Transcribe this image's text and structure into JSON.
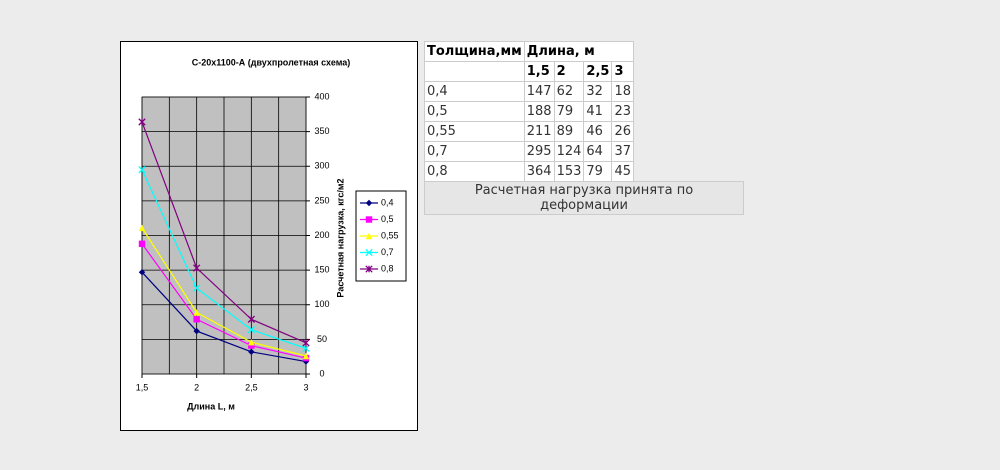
{
  "chart_data": {
    "type": "line",
    "title": "С-20х1100-А (двухпролетная схема)",
    "x_label": "Длина L, м",
    "y_label": "Расчетная нагрузка, кгс/м2",
    "x": [
      1.5,
      2,
      2.5,
      3
    ],
    "xlim": [
      1.5,
      3
    ],
    "xticks": [
      {
        "value": 1.5,
        "label": "1,5"
      },
      2,
      {
        "value": 2.5,
        "label": "2,5"
      },
      3
    ],
    "xgrid": [
      1.5,
      1.75,
      2,
      2.25,
      2.5,
      2.75,
      3
    ],
    "ylim": [
      0,
      400
    ],
    "yticks": [
      0,
      50,
      100,
      150,
      200,
      250,
      300,
      350,
      400
    ],
    "grid": true,
    "plot_background": "#c0c0c0",
    "legend": "right",
    "series": [
      {
        "name": "0,4",
        "color": "#000080",
        "marker": "diamond",
        "values": [
          147,
          62,
          32,
          18
        ]
      },
      {
        "name": "0,5",
        "color": "#ff00ff",
        "marker": "square",
        "values": [
          188,
          79,
          41,
          23
        ]
      },
      {
        "name": "0,55",
        "color": "#ffff00",
        "marker": "triangle",
        "values": [
          211,
          89,
          46,
          26
        ]
      },
      {
        "name": "0,7",
        "color": "#00ffff",
        "marker": "x",
        "values": [
          295,
          124,
          64,
          37
        ]
      },
      {
        "name": "0,8",
        "color": "#800080",
        "marker": "star",
        "values": [
          364,
          153,
          79,
          45
        ]
      }
    ]
  },
  "table": {
    "header": [
      "Толщина,мм",
      "Длина, м"
    ],
    "lengths": [
      "1,5",
      "2",
      "2,5",
      "3"
    ],
    "rows": [
      [
        "0,4",
        147,
        62,
        32,
        18
      ],
      [
        "0,5",
        188,
        79,
        41,
        23
      ],
      [
        "0,55",
        211,
        89,
        46,
        26
      ],
      [
        "0,7",
        295,
        124,
        64,
        37
      ],
      [
        "0,8",
        364,
        153,
        79,
        45
      ]
    ]
  },
  "button": {
    "label": "Расчетная нагрузка принята по деформации"
  }
}
